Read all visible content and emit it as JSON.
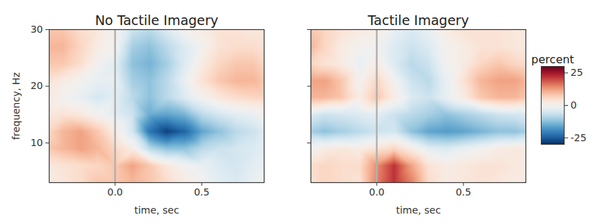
{
  "chart_data": [
    {
      "type": "heatmap",
      "title": "No Tactile Imagery",
      "x_label": "time, sec",
      "y_label": "frequency, Hz",
      "x": [
        -0.38,
        -0.3,
        -0.2,
        -0.1,
        0,
        0.1,
        0.2,
        0.3,
        0.4,
        0.5,
        0.6,
        0.7,
        0.8,
        0.86
      ],
      "y": [
        3,
        6,
        9,
        12,
        15,
        18,
        21,
        24,
        27,
        30
      ],
      "values": [
        [
          2,
          3,
          5,
          8,
          8,
          10,
          8,
          5,
          2,
          0,
          -3,
          -4,
          -2,
          0
        ],
        [
          3,
          4,
          5,
          6,
          8,
          12,
          8,
          3,
          0,
          -2,
          -4,
          -5,
          -3,
          -2
        ],
        [
          8,
          10,
          12,
          10,
          6,
          2,
          -8,
          -12,
          -12,
          -8,
          -6,
          -5,
          -4,
          -3
        ],
        [
          6,
          10,
          12,
          8,
          2,
          -5,
          -22,
          -28,
          -24,
          -16,
          -12,
          -8,
          -6,
          -4
        ],
        [
          3,
          4,
          3,
          0,
          -3,
          -6,
          -15,
          -16,
          -14,
          -8,
          -5,
          -3,
          -2,
          0
        ],
        [
          2,
          0,
          -2,
          -5,
          -3,
          -8,
          -12,
          -8,
          -4,
          0,
          3,
          5,
          6,
          6
        ],
        [
          4,
          2,
          0,
          -2,
          -2,
          -10,
          -12,
          -8,
          -2,
          4,
          8,
          10,
          10,
          8
        ],
        [
          8,
          8,
          5,
          0,
          -3,
          -12,
          -14,
          -10,
          -4,
          2,
          6,
          8,
          8,
          6
        ],
        [
          10,
          10,
          6,
          2,
          0,
          -10,
          -12,
          -8,
          -4,
          0,
          4,
          5,
          5,
          4
        ],
        [
          8,
          8,
          5,
          3,
          0,
          -6,
          -8,
          -4,
          0,
          2,
          4,
          4,
          3,
          3
        ]
      ],
      "xlim": [
        -0.38,
        0.86
      ],
      "xticks": [
        {
          "value": 0,
          "label": "0.0"
        },
        0.5
      ],
      "ylim": [
        3,
        30
      ],
      "yticks": [
        10,
        20,
        30
      ],
      "vline": 0
    },
    {
      "type": "heatmap",
      "title": "Tactile Imagery",
      "x_label": "time, sec",
      "tick_labels": "x",
      "x": [
        -0.38,
        -0.3,
        -0.2,
        -0.1,
        0,
        0.1,
        0.2,
        0.3,
        0.4,
        0.5,
        0.6,
        0.7,
        0.8,
        0.86
      ],
      "y": [
        3,
        6,
        9,
        12,
        15,
        18,
        21,
        24,
        27,
        30
      ],
      "values": [
        [
          4,
          6,
          5,
          4,
          15,
          22,
          15,
          5,
          2,
          3,
          4,
          3,
          2,
          2
        ],
        [
          5,
          6,
          5,
          5,
          14,
          22,
          12,
          4,
          2,
          3,
          4,
          4,
          3,
          2
        ],
        [
          0,
          2,
          3,
          2,
          4,
          6,
          2,
          -3,
          -4,
          -2,
          0,
          2,
          3,
          2
        ],
        [
          -10,
          -12,
          -10,
          -8,
          -6,
          -5,
          -12,
          -16,
          -17,
          -16,
          -14,
          -12,
          -12,
          -10
        ],
        [
          -4,
          -6,
          -5,
          -4,
          -3,
          -6,
          -8,
          -10,
          -12,
          -10,
          -8,
          -6,
          -5,
          -4
        ],
        [
          10,
          10,
          8,
          2,
          8,
          2,
          -4,
          -6,
          -2,
          2,
          8,
          10,
          10,
          8
        ],
        [
          12,
          12,
          8,
          0,
          6,
          0,
          -6,
          -8,
          -2,
          4,
          10,
          12,
          12,
          10
        ],
        [
          6,
          4,
          2,
          -2,
          2,
          -4,
          -8,
          -6,
          0,
          2,
          6,
          8,
          6,
          5
        ],
        [
          10,
          6,
          2,
          0,
          0,
          -4,
          -6,
          -4,
          0,
          2,
          4,
          4,
          3,
          3
        ],
        [
          8,
          6,
          4,
          2,
          2,
          -2,
          -4,
          -2,
          2,
          4,
          4,
          4,
          3,
          3
        ]
      ],
      "xlim": [
        -0.38,
        0.86
      ],
      "xticks": [
        {
          "value": 0,
          "label": "0.0"
        },
        0.5
      ],
      "ylim": [
        3,
        30
      ],
      "yticks": [
        10,
        20,
        30
      ],
      "vline": 0,
      "color_label": "percent",
      "color_range": [
        -30,
        30
      ],
      "color_ticks": [
        -25,
        0,
        25
      ]
    }
  ]
}
